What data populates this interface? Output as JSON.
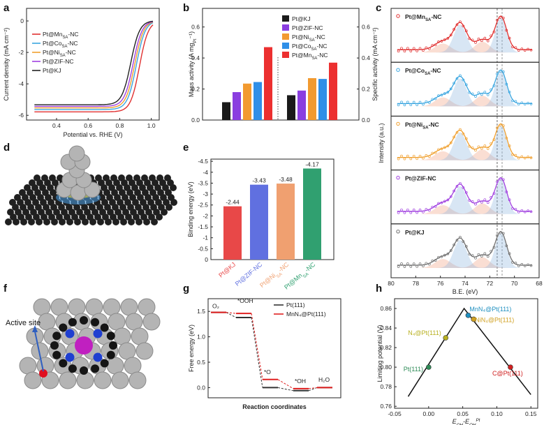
{
  "panels": {
    "a": "a",
    "b": "b",
    "c": "c",
    "d": "d",
    "e": "e",
    "f": "f",
    "g": "g",
    "h": "h"
  },
  "colors": {
    "mn": "#e03030",
    "co": "#3aa6e0",
    "ni": "#f0a030",
    "zif": "#a040e0",
    "kj": "#222222",
    "green": "#2e8b57",
    "blue": "#3060d0"
  },
  "chart_data": [
    {
      "id": "a",
      "type": "line",
      "xlabel": "Potential vs. RHE (V)",
      "ylabel": "Current density (mA cm⁻²)",
      "xlim": [
        0.25,
        1.03
      ],
      "ylim": [
        -6.3,
        0.8
      ],
      "xticks": [
        0.2,
        0.4,
        0.6,
        0.8,
        1.0
      ],
      "yticks": [
        0,
        -2,
        -4,
        -6
      ],
      "legend": [
        "Pt@Mn_SA-NC",
        "Pt@Co_SA-NC",
        "Pt@Ni_SA-NC",
        "Pt@ZIF-NC",
        "Pt@KJ"
      ],
      "series": [
        {
          "name": "Pt@Mn_SA-NC",
          "color": "#e03030",
          "limit": -5.8,
          "half_wave": 0.925
        },
        {
          "name": "Pt@Co_SA-NC",
          "color": "#3aa6e0",
          "limit": -5.65,
          "half_wave": 0.905
        },
        {
          "name": "Pt@Ni_SA-NC",
          "color": "#f0a030",
          "limit": -5.55,
          "half_wave": 0.895
        },
        {
          "name": "Pt@ZIF-NC",
          "color": "#a040e0",
          "limit": -5.45,
          "half_wave": 0.885
        },
        {
          "name": "Pt@KJ",
          "color": "#222222",
          "limit": -5.35,
          "half_wave": 0.87
        }
      ]
    },
    {
      "id": "b",
      "type": "bar",
      "ylabel_left": "Mass activity (A mg_Pt⁻¹)",
      "ylabel_right": "Specific activity (mA cm⁻²)",
      "yticks": [
        0.0,
        0.2,
        0.4,
        0.6
      ],
      "ylim": [
        0,
        0.72
      ],
      "legend": [
        "Pt@KJ",
        "Pt@ZIF-NC",
        "Pt@Ni_SA-NC",
        "Pt@Co_SA-NC",
        "Pt@Mn_SA-NC"
      ],
      "mass_activity": [
        0.115,
        0.18,
        0.235,
        0.245,
        0.47
      ],
      "specific_activity": [
        0.16,
        0.19,
        0.27,
        0.265,
        0.37
      ]
    },
    {
      "id": "c",
      "type": "line",
      "xlabel": "B.E. (eV)",
      "ylabel": "Intensity (a.u.)",
      "xlim": [
        80,
        68
      ],
      "xticks": [
        80,
        78,
        76,
        74,
        72,
        70,
        68
      ],
      "series": [
        {
          "name": "Pt@Mn_SA-NC",
          "color": "#e03030"
        },
        {
          "name": "Pt@Co_SA-NC",
          "color": "#3aa6e0"
        },
        {
          "name": "Pt@Ni_SA-NC",
          "color": "#f0a030"
        },
        {
          "name": "Pt@ZIF-NC",
          "color": "#a040e0"
        },
        {
          "name": "Pt@KJ",
          "color": "#707070"
        }
      ]
    },
    {
      "id": "e",
      "type": "bar",
      "ylabel": "Binding energy (eV)",
      "categories": [
        "Pt@KJ",
        "Pt@ZIF-NC",
        "Pt@Ni_SA-NC",
        "Pt@Mn_SA-NC"
      ],
      "values": [
        -2.44,
        -3.43,
        -3.48,
        -4.17
      ],
      "value_labels": [
        "-2.44",
        "-3.43",
        "-3.48",
        "-4.17"
      ],
      "colors": [
        "#e84848",
        "#6070e0",
        "#f0a070",
        "#30a070"
      ],
      "yticks": [
        0,
        -0.5,
        -1,
        -1.5,
        -2,
        -2.5,
        -3,
        -3.5,
        -4,
        -4.5
      ],
      "ylim": [
        0,
        -4.6
      ]
    },
    {
      "id": "g",
      "type": "line",
      "xlabel": "Reaction coordinates",
      "ylabel": "Free energy (eV)",
      "yticks": [
        0.0,
        0.5,
        1.0,
        1.5
      ],
      "states": [
        "O₂",
        "*OOH",
        "*O",
        "*OH",
        "H₂O"
      ],
      "legend": [
        "Pt(111)",
        "MnN₄@Pt(111)"
      ],
      "series": [
        {
          "name": "Pt(111)",
          "values": [
            1.48,
            1.38,
            0.0,
            -0.06,
            0.0
          ]
        },
        {
          "name": "MnN₄@Pt(111)",
          "values": [
            1.48,
            1.46,
            0.16,
            -0.02,
            0.0
          ]
        }
      ]
    },
    {
      "id": "h",
      "type": "scatter",
      "xlabel": "E_OH-E_OH^Pt",
      "ylabel": "Limiting potential (V)",
      "xlim": [
        -0.05,
        0.16
      ],
      "ylim": [
        0.758,
        0.87
      ],
      "xticks": [
        -0.05,
        0.0,
        0.05,
        0.1,
        0.15
      ],
      "yticks": [
        0.76,
        0.78,
        0.8,
        0.82,
        0.84,
        0.86
      ],
      "volcano": [
        [
          -0.03,
          0.77
        ],
        [
          0.052,
          0.86
        ],
        [
          0.15,
          0.772
        ]
      ],
      "points": [
        {
          "label": "Pt(111)",
          "x": 0.0,
          "y": 0.8,
          "color": "#2e8b57"
        },
        {
          "label": "N₄@Pt(111)",
          "x": 0.025,
          "y": 0.83,
          "color": "#b8b020"
        },
        {
          "label": "MnN₄@Pt(111)",
          "x": 0.058,
          "y": 0.853,
          "color": "#2090c0"
        },
        {
          "label": "NiN₄@Pt(111)",
          "x": 0.066,
          "y": 0.849,
          "color": "#d0a020"
        },
        {
          "label": "C@Pt(111)",
          "x": 0.12,
          "y": 0.8,
          "color": "#d02020"
        }
      ]
    }
  ],
  "annotations": {
    "active_site": "Active site"
  }
}
